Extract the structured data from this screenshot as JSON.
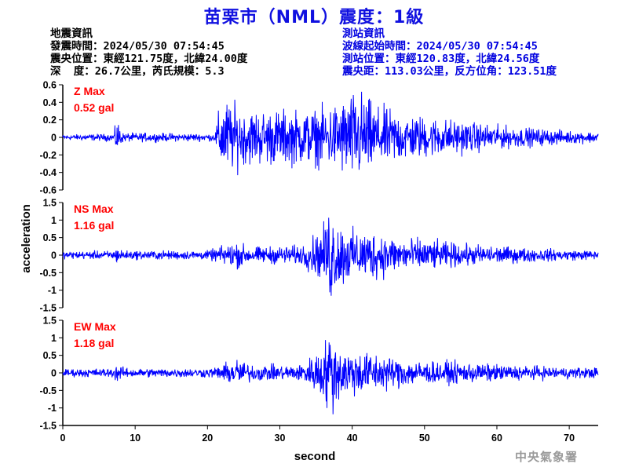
{
  "title": "苗栗市（NML）震度：1級",
  "earthquake_info": {
    "heading": "地震資訊",
    "origin_time": "發震時間：2024/05/30 07:54:45",
    "epicenter": "震央位置：東經121.75度，北緯24.00度",
    "depth_magnitude": "深  度：26.7公里，芮氏規模：5.3"
  },
  "station_info": {
    "heading": "測站資訊",
    "wave_start": "波線起始時間：2024/05/30 07:54:45",
    "location": "測站位置：東經120.83度，北緯24.56度",
    "distance_azimuth": "震央距：113.03公里，反方位角：123.51度"
  },
  "agency": "中央氣象署",
  "colors": {
    "title": "#1010e0",
    "trace": "#0000ff",
    "max_label": "#ff0000",
    "station_text": "#0000e0"
  },
  "chart_data": {
    "type": "line",
    "xlabel": "second",
    "ylabel": "acceleration",
    "xlim": [
      0,
      74
    ],
    "xticks": [
      0,
      10,
      20,
      30,
      40,
      50,
      60,
      70
    ],
    "grid": false,
    "panels": [
      {
        "component": "Z",
        "label": "Z Max",
        "max_text": "0.52 gal",
        "peak": 0.52,
        "ylim": [
          -0.6,
          0.6
        ],
        "yticks": [
          -0.6,
          -0.4,
          -0.2,
          0,
          0.2,
          0.4,
          0.6
        ],
        "envelope": [
          [
            0,
            0.03
          ],
          [
            7,
            0.04
          ],
          [
            7.5,
            0.2
          ],
          [
            8.3,
            0.05
          ],
          [
            21,
            0.04
          ],
          [
            21.7,
            0.35
          ],
          [
            22.5,
            0.42
          ],
          [
            25,
            0.3
          ],
          [
            30,
            0.3
          ],
          [
            35,
            0.3
          ],
          [
            37,
            0.35
          ],
          [
            41,
            0.52
          ],
          [
            43,
            0.35
          ],
          [
            48,
            0.25
          ],
          [
            55,
            0.18
          ],
          [
            60,
            0.13
          ],
          [
            65,
            0.1
          ],
          [
            70,
            0.07
          ],
          [
            74,
            0.06
          ]
        ]
      },
      {
        "component": "NS",
        "label": "NS Max",
        "max_text": "1.16 gal",
        "peak": 1.16,
        "ylim": [
          -1.5,
          1.5
        ],
        "yticks": [
          -1.5,
          -1,
          -0.5,
          0,
          0.5,
          1,
          1.5
        ],
        "envelope": [
          [
            0,
            0.08
          ],
          [
            7,
            0.1
          ],
          [
            7.5,
            0.18
          ],
          [
            8.5,
            0.1
          ],
          [
            20,
            0.1
          ],
          [
            22,
            0.2
          ],
          [
            24,
            0.3
          ],
          [
            26,
            0.18
          ],
          [
            30,
            0.2
          ],
          [
            33,
            0.22
          ],
          [
            36,
            0.6
          ],
          [
            37,
            1.16
          ],
          [
            38,
            0.75
          ],
          [
            40,
            0.55
          ],
          [
            43,
            0.55
          ],
          [
            46,
            0.4
          ],
          [
            50,
            0.35
          ],
          [
            55,
            0.25
          ],
          [
            60,
            0.2
          ],
          [
            65,
            0.15
          ],
          [
            70,
            0.12
          ],
          [
            74,
            0.1
          ]
        ]
      },
      {
        "component": "EW",
        "label": "EW Max",
        "max_text": "1.18 gal",
        "peak": 1.18,
        "ylim": [
          -1.5,
          1.5
        ],
        "yticks": [
          -1.5,
          -1,
          -0.5,
          0,
          0.5,
          1,
          1.5
        ],
        "envelope": [
          [
            0,
            0.1
          ],
          [
            7,
            0.12
          ],
          [
            7.5,
            0.28
          ],
          [
            8.5,
            0.12
          ],
          [
            20,
            0.12
          ],
          [
            22,
            0.2
          ],
          [
            24,
            0.38
          ],
          [
            26,
            0.22
          ],
          [
            30,
            0.2
          ],
          [
            33,
            0.22
          ],
          [
            36,
            0.7
          ],
          [
            37,
            1.18
          ],
          [
            38,
            0.75
          ],
          [
            40,
            0.6
          ],
          [
            42,
            0.55
          ],
          [
            46,
            0.4
          ],
          [
            50,
            0.3
          ],
          [
            55,
            0.28
          ],
          [
            60,
            0.22
          ],
          [
            65,
            0.18
          ],
          [
            70,
            0.15
          ],
          [
            74,
            0.14
          ]
        ]
      }
    ]
  }
}
